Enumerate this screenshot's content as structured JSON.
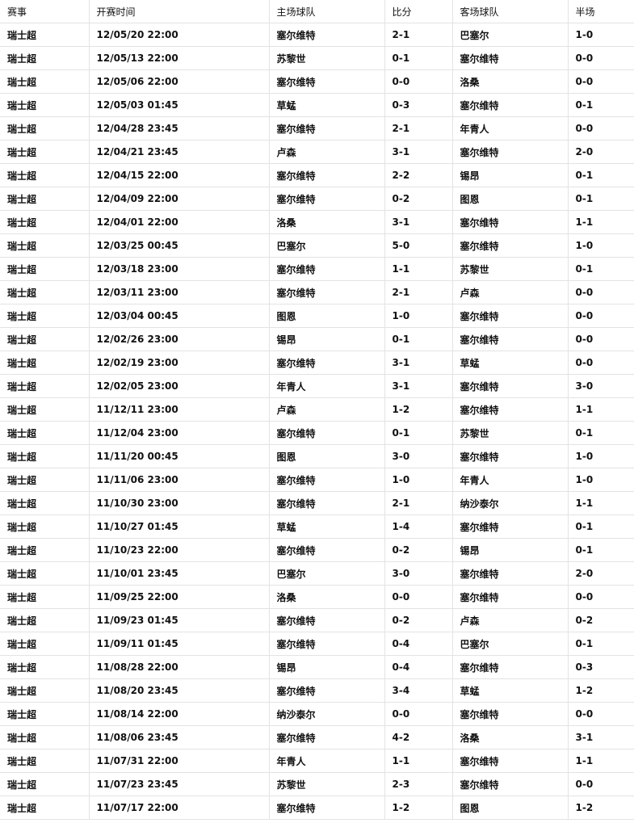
{
  "headers": [
    "赛事",
    "开赛时间",
    "主场球队",
    "比分",
    "客场球队",
    "半场"
  ],
  "rows": [
    [
      "瑞士超",
      "12/05/20 22:00",
      "塞尔维特",
      "2-1",
      "巴塞尔",
      "1-0"
    ],
    [
      "瑞士超",
      "12/05/13 22:00",
      "苏黎世",
      "0-1",
      "塞尔维特",
      "0-0"
    ],
    [
      "瑞士超",
      "12/05/06 22:00",
      "塞尔维特",
      "0-0",
      "洛桑",
      "0-0"
    ],
    [
      "瑞士超",
      "12/05/03 01:45",
      "草蜢",
      "0-3",
      "塞尔维特",
      "0-1"
    ],
    [
      "瑞士超",
      "12/04/28 23:45",
      "塞尔维特",
      "2-1",
      "年青人",
      "0-0"
    ],
    [
      "瑞士超",
      "12/04/21 23:45",
      "卢森",
      "3-1",
      "塞尔维特",
      "2-0"
    ],
    [
      "瑞士超",
      "12/04/15 22:00",
      "塞尔维特",
      "2-2",
      "锡昂",
      "0-1"
    ],
    [
      "瑞士超",
      "12/04/09 22:00",
      "塞尔维特",
      "0-2",
      "图恩",
      "0-1"
    ],
    [
      "瑞士超",
      "12/04/01 22:00",
      "洛桑",
      "3-1",
      "塞尔维特",
      "1-1"
    ],
    [
      "瑞士超",
      "12/03/25 00:45",
      "巴塞尔",
      "5-0",
      "塞尔维特",
      "1-0"
    ],
    [
      "瑞士超",
      "12/03/18 23:00",
      "塞尔维特",
      "1-1",
      "苏黎世",
      "0-1"
    ],
    [
      "瑞士超",
      "12/03/11 23:00",
      "塞尔维特",
      "2-1",
      "卢森",
      "0-0"
    ],
    [
      "瑞士超",
      "12/03/04 00:45",
      "图恩",
      "1-0",
      "塞尔维特",
      "0-0"
    ],
    [
      "瑞士超",
      "12/02/26 23:00",
      "锡昂",
      "0-1",
      "塞尔维特",
      "0-0"
    ],
    [
      "瑞士超",
      "12/02/19 23:00",
      "塞尔维特",
      "3-1",
      "草蜢",
      "0-0"
    ],
    [
      "瑞士超",
      "12/02/05 23:00",
      "年青人",
      "3-1",
      "塞尔维特",
      "3-0"
    ],
    [
      "瑞士超",
      "11/12/11 23:00",
      "卢森",
      "1-2",
      "塞尔维特",
      "1-1"
    ],
    [
      "瑞士超",
      "11/12/04 23:00",
      "塞尔维特",
      "0-1",
      "苏黎世",
      "0-1"
    ],
    [
      "瑞士超",
      "11/11/20 00:45",
      "图恩",
      "3-0",
      "塞尔维特",
      "1-0"
    ],
    [
      "瑞士超",
      "11/11/06 23:00",
      "塞尔维特",
      "1-0",
      "年青人",
      "1-0"
    ],
    [
      "瑞士超",
      "11/10/30 23:00",
      "塞尔维特",
      "2-1",
      "纳沙泰尔",
      "1-1"
    ],
    [
      "瑞士超",
      "11/10/27 01:45",
      "草蜢",
      "1-4",
      "塞尔维特",
      "0-1"
    ],
    [
      "瑞士超",
      "11/10/23 22:00",
      "塞尔维特",
      "0-2",
      "锡昂",
      "0-1"
    ],
    [
      "瑞士超",
      "11/10/01 23:45",
      "巴塞尔",
      "3-0",
      "塞尔维特",
      "2-0"
    ],
    [
      "瑞士超",
      "11/09/25 22:00",
      "洛桑",
      "0-0",
      "塞尔维特",
      "0-0"
    ],
    [
      "瑞士超",
      "11/09/23 01:45",
      "塞尔维特",
      "0-2",
      "卢森",
      "0-2"
    ],
    [
      "瑞士超",
      "11/09/11 01:45",
      "塞尔维特",
      "0-4",
      "巴塞尔",
      "0-1"
    ],
    [
      "瑞士超",
      "11/08/28 22:00",
      "锡昂",
      "0-4",
      "塞尔维特",
      "0-3"
    ],
    [
      "瑞士超",
      "11/08/20 23:45",
      "塞尔维特",
      "3-4",
      "草蜢",
      "1-2"
    ],
    [
      "瑞士超",
      "11/08/14 22:00",
      "纳沙泰尔",
      "0-0",
      "塞尔维特",
      "0-0"
    ],
    [
      "瑞士超",
      "11/08/06 23:45",
      "塞尔维特",
      "4-2",
      "洛桑",
      "3-1"
    ],
    [
      "瑞士超",
      "11/07/31 22:00",
      "年青人",
      "1-1",
      "塞尔维特",
      "1-1"
    ],
    [
      "瑞士超",
      "11/07/23 23:45",
      "苏黎世",
      "2-3",
      "塞尔维特",
      "0-0"
    ],
    [
      "瑞士超",
      "11/07/17 22:00",
      "塞尔维特",
      "1-2",
      "图恩",
      "1-2"
    ]
  ]
}
